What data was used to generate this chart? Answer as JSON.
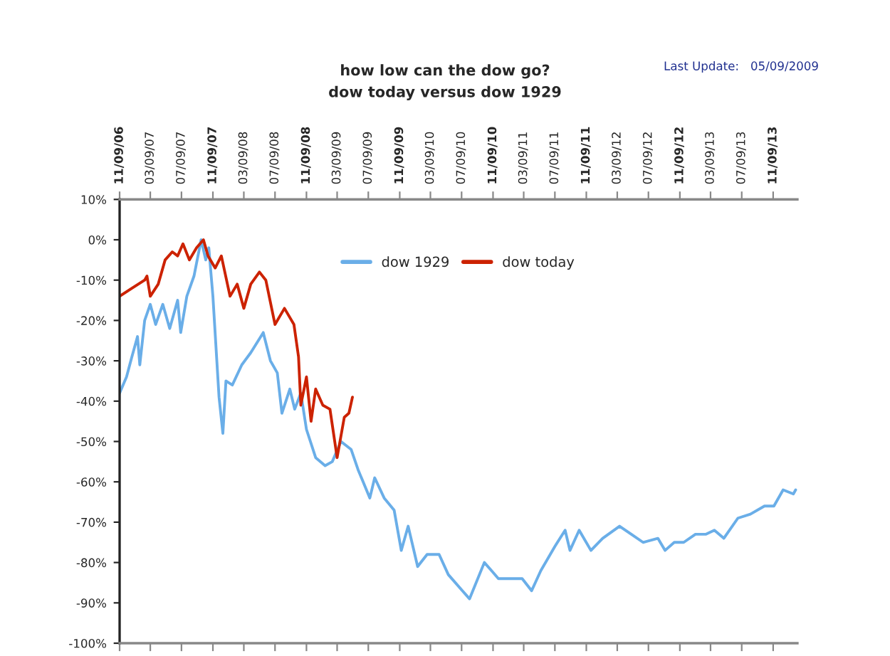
{
  "chart_data": {
    "type": "line",
    "title": "how low can the dow go?",
    "subtitle": "dow today versus dow 1929",
    "annotations": [
      "Last Update:   05/09/2009"
    ],
    "xlim": [
      "2006-11-09",
      "2014-02-12"
    ],
    "xticks": [
      {
        "value": "2006-11-09",
        "label": "11/09/06"
      },
      {
        "value": "2007-03-09",
        "label": "03/09/07"
      },
      {
        "value": "2007-07-09",
        "label": "07/09/07"
      },
      {
        "value": "2007-11-09",
        "label": "11/09/07"
      },
      {
        "value": "2008-03-09",
        "label": "03/09/08"
      },
      {
        "value": "2008-07-09",
        "label": "07/09/08"
      },
      {
        "value": "2008-11-09",
        "label": "11/09/08"
      },
      {
        "value": "2009-03-09",
        "label": "03/09/09"
      },
      {
        "value": "2009-07-09",
        "label": "07/09/09"
      },
      {
        "value": "2009-11-09",
        "label": "11/09/09"
      },
      {
        "value": "2010-03-09",
        "label": "03/09/10"
      },
      {
        "value": "2010-07-09",
        "label": "07/09/10"
      },
      {
        "value": "2010-11-09",
        "label": "11/09/10"
      },
      {
        "value": "2011-03-09",
        "label": "03/09/11"
      },
      {
        "value": "2011-07-09",
        "label": "07/09/11"
      },
      {
        "value": "2011-11-09",
        "label": "11/09/11"
      },
      {
        "value": "2012-03-09",
        "label": "03/09/12"
      },
      {
        "value": "2012-07-09",
        "label": "07/09/12"
      },
      {
        "value": "2012-11-09",
        "label": "11/09/12"
      },
      {
        "value": "2013-03-09",
        "label": "03/09/13"
      },
      {
        "value": "2013-07-09",
        "label": "07/09/13"
      },
      {
        "value": "2013-11-09",
        "label": "11/09/13"
      }
    ],
    "ylim": [
      -100,
      10
    ],
    "yticks": [
      {
        "value": -100,
        "label": "-100%"
      },
      {
        "value": -90,
        "label": "-90%"
      },
      {
        "value": -80,
        "label": "-80%"
      },
      {
        "value": -70,
        "label": "-70%"
      },
      {
        "value": -60,
        "label": "-60%"
      },
      {
        "value": -50,
        "label": "-50%"
      },
      {
        "value": -40,
        "label": "-40%"
      },
      {
        "value": -30,
        "label": "-30%"
      },
      {
        "value": -20,
        "label": "-20%"
      },
      {
        "value": -10,
        "label": "-10%"
      },
      {
        "value": 0,
        "label": "0%"
      },
      {
        "value": 10,
        "label": "10%"
      }
    ],
    "grid": false,
    "legend": "top",
    "marker": "none",
    "line_style": "solid",
    "series": [
      {
        "name": "dow 1929",
        "color": "#6aaee8",
        "x": [
          "2006-11-09",
          "2006-12-06",
          "2006-12-27",
          "2007-01-18",
          "2007-01-27",
          "2007-02-15",
          "2007-03-09",
          "2007-03-30",
          "2007-04-27",
          "2007-05-24",
          "2007-06-24",
          "2007-07-06",
          "2007-07-30",
          "2007-08-27",
          "2007-09-24",
          "2007-10-12",
          "2007-10-24",
          "2007-11-09",
          "2007-12-03",
          "2007-12-18",
          "2007-12-30",
          "2008-01-24",
          "2008-03-01",
          "2008-04-05",
          "2008-05-24",
          "2008-06-21",
          "2008-07-18",
          "2008-08-05",
          "2008-09-05",
          "2008-09-24",
          "2008-10-18",
          "2008-11-09",
          "2008-12-15",
          "2009-01-21",
          "2009-02-18",
          "2009-03-24",
          "2009-05-03",
          "2009-05-30",
          "2009-07-15",
          "2009-08-03",
          "2009-09-09",
          "2009-10-18",
          "2009-11-15",
          "2009-12-12",
          "2010-01-18",
          "2010-02-24",
          "2010-04-12",
          "2010-05-18",
          "2010-07-12",
          "2010-08-09",
          "2010-10-06",
          "2010-11-03",
          "2010-11-30",
          "2011-01-24",
          "2011-03-03",
          "2011-04-09",
          "2011-05-15",
          "2011-07-09",
          "2011-08-18",
          "2011-09-06",
          "2011-10-12",
          "2011-11-27",
          "2012-01-12",
          "2012-03-18",
          "2012-05-03",
          "2012-06-18",
          "2012-08-15",
          "2012-09-12",
          "2012-10-18",
          "2012-11-24",
          "2013-01-09",
          "2013-02-18",
          "2013-03-24",
          "2013-04-30",
          "2013-06-24",
          "2013-08-12",
          "2013-10-06",
          "2013-11-12",
          "2013-12-18",
          "2014-01-27",
          "2014-02-05"
        ],
        "values": [
          -38,
          -34,
          -29,
          -24,
          -31,
          -20,
          -16,
          -21,
          -16,
          -22,
          -15,
          -23,
          -14,
          -9,
          0,
          -5,
          -2,
          -14,
          -39,
          -48,
          -35,
          -36,
          -31,
          -28,
          -23,
          -30,
          -33,
          -43,
          -37,
          -42,
          -38,
          -47,
          -54,
          -56,
          -55,
          -50,
          -52,
          -57,
          -64,
          -59,
          -64,
          -67,
          -77,
          -71,
          -81,
          -78,
          -78,
          -83,
          -87,
          -89,
          -80,
          -82,
          -84,
          -84,
          -84,
          -87,
          -82,
          -76,
          -72,
          -77,
          -72,
          -77,
          -74,
          -71,
          -73,
          -75,
          -74,
          -77,
          -75,
          -75,
          -73,
          -73,
          -72,
          -74,
          -69,
          -68,
          -66,
          -66,
          -62,
          -63,
          -62
        ]
      },
      {
        "name": "dow today",
        "color": "#cc2200",
        "x": [
          "2006-11-09",
          "2006-12-27",
          "2007-02-15",
          "2007-02-24",
          "2007-03-09",
          "2007-04-09",
          "2007-05-06",
          "2007-06-03",
          "2007-06-24",
          "2007-07-15",
          "2007-08-09",
          "2007-09-06",
          "2007-10-03",
          "2007-10-21",
          "2007-11-18",
          "2007-12-12",
          "2008-01-15",
          "2008-02-12",
          "2008-03-09",
          "2008-04-05",
          "2008-05-09",
          "2008-06-03",
          "2008-07-09",
          "2008-08-15",
          "2008-09-21",
          "2008-10-09",
          "2008-10-18",
          "2008-11-09",
          "2008-11-27",
          "2008-12-15",
          "2009-01-12",
          "2009-02-09",
          "2009-03-09",
          "2009-04-06",
          "2009-04-24",
          "2009-05-08"
        ],
        "values": [
          -14,
          -12,
          -10,
          -9,
          -14,
          -11,
          -5,
          -3,
          -4,
          -1,
          -5,
          -2,
          0,
          -4,
          -7,
          -4,
          -14,
          -11,
          -17,
          -11,
          -8,
          -10,
          -21,
          -17,
          -21,
          -29,
          -41,
          -34,
          -45,
          -37,
          -41,
          -42,
          -54,
          -44,
          -43,
          -39
        ]
      }
    ]
  }
}
